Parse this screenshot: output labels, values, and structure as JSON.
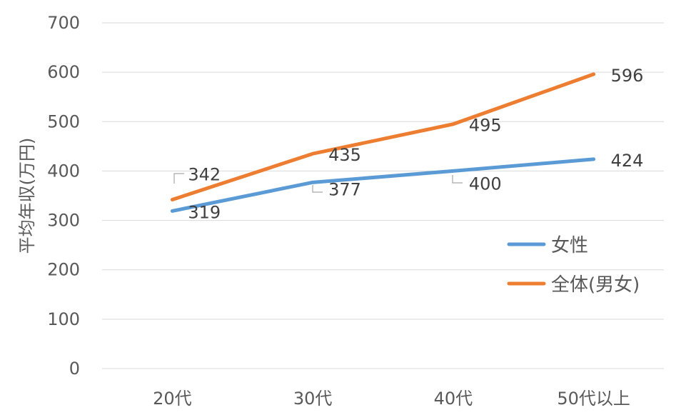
{
  "chart_data": {
    "type": "line",
    "title": "",
    "xlabel": "",
    "ylabel": "平均年収(万円)",
    "categories": [
      "20代",
      "30代",
      "40代",
      "50代以上"
    ],
    "ylim": [
      0,
      700
    ],
    "yticks": [
      0,
      100,
      200,
      300,
      400,
      500,
      600,
      700
    ],
    "grid": true,
    "legend_position": "right",
    "series": [
      {
        "name": "女性",
        "values": [
          319,
          377,
          400,
          424
        ],
        "color": "#5b9bd5"
      },
      {
        "name": "全体(男女)",
        "values": [
          342,
          435,
          495,
          596
        ],
        "color": "#ed7d31"
      }
    ]
  }
}
